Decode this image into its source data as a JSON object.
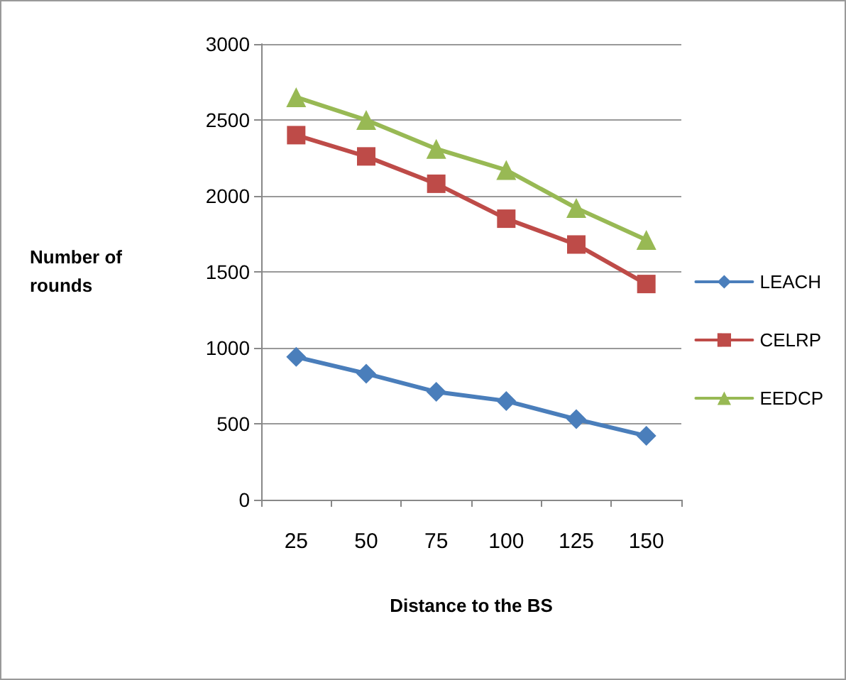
{
  "chart_data": {
    "type": "line",
    "xlabel": "Distance to the BS",
    "ylabel": "Number of\nrounds",
    "categories": [
      "25",
      "50",
      "75",
      "100",
      "125",
      "150"
    ],
    "series": [
      {
        "name": "LEACH",
        "color": "#4a7ebb",
        "marker": "diamond",
        "values": [
          940,
          830,
          710,
          650,
          530,
          420
        ]
      },
      {
        "name": "CELRP",
        "color": "#be4b48",
        "marker": "square",
        "values": [
          2400,
          2260,
          2080,
          1850,
          1680,
          1420
        ]
      },
      {
        "name": "EEDCP",
        "color": "#98b954",
        "marker": "triangle",
        "values": [
          2650,
          2500,
          2310,
          2170,
          1920,
          1710
        ]
      }
    ],
    "ylim": [
      0,
      3000
    ],
    "yticks": [
      0,
      500,
      1000,
      1500,
      2000,
      2500,
      3000
    ],
    "grid": "y",
    "legend": "right",
    "line_style": "solid"
  }
}
